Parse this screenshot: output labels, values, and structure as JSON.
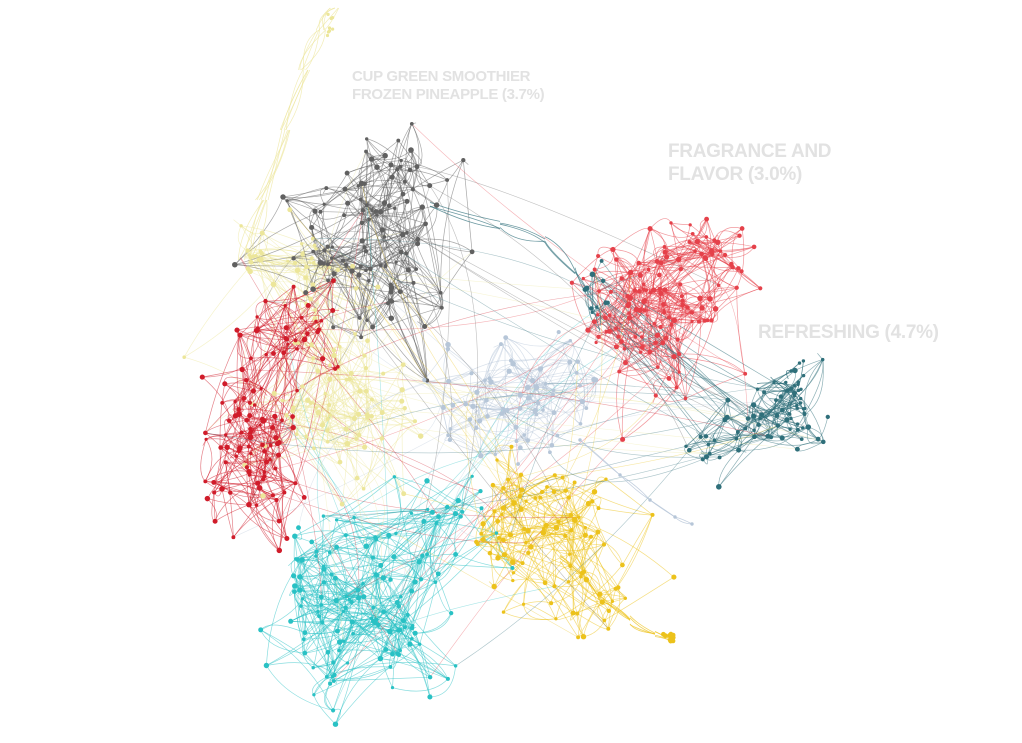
{
  "clusters": {
    "smoothie": {
      "label_line1": "CUP GREEN SMOOTHIER",
      "label_line2": "FROZEN PINEAPPLE (3.7%)"
    },
    "fragrance": {
      "label_line1": "FRAGRANCE AND",
      "label_line2": "FLAVOR (3.0%)"
    },
    "refreshing": {
      "label": "REFRESHING (4.7%)"
    }
  },
  "colors": {
    "gray": "#606060",
    "red_right": "#e5414a",
    "teal_dark": "#2f6f7a",
    "pale_yellow": "#ece69a",
    "crimson": "#d01c2a",
    "cyan": "#29c1c4",
    "gold": "#ecc21b",
    "light_blue": "#b6c6d8"
  }
}
